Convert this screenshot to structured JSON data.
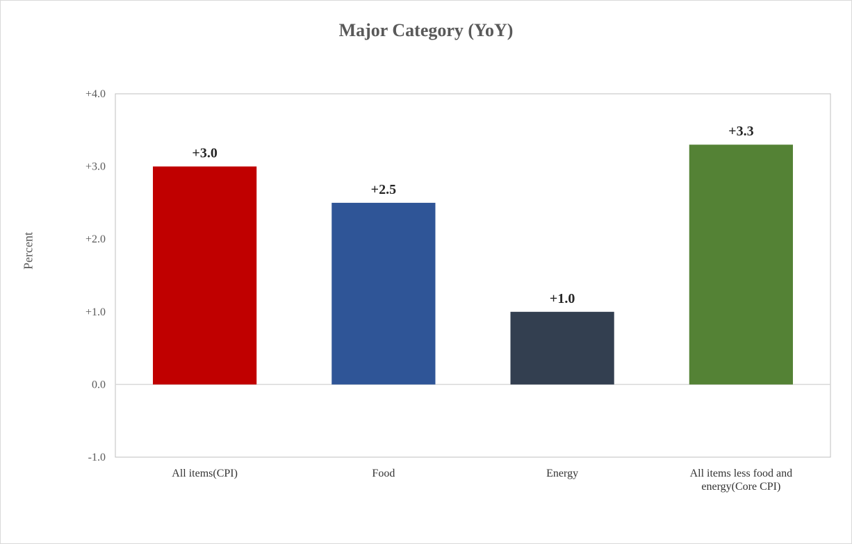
{
  "chart_data": {
    "type": "bar",
    "title": "Major Category (YoY)",
    "ylabel": "Percent",
    "xlabel": "",
    "ylim": [
      -1.0,
      4.0
    ],
    "yticks": [
      {
        "value": 4.0,
        "label": "+4.0"
      },
      {
        "value": 3.0,
        "label": "+3.0"
      },
      {
        "value": 2.0,
        "label": "+2.0"
      },
      {
        "value": 1.0,
        "label": "+1.0"
      },
      {
        "value": 0.0,
        "label": "0.0"
      },
      {
        "value": -1.0,
        "label": "-1.0"
      }
    ],
    "grid": false,
    "categories": [
      [
        "All items(CPI)"
      ],
      [
        "Food"
      ],
      [
        "Energy"
      ],
      [
        "All items less food and",
        "energy(Core CPI)"
      ]
    ],
    "values": [
      3.0,
      2.5,
      1.0,
      3.3
    ],
    "data_labels": [
      "+3.0",
      "+2.5",
      "+1.0",
      "+3.3"
    ],
    "colors": [
      "#c00000",
      "#2f5597",
      "#333f50",
      "#548235"
    ]
  }
}
